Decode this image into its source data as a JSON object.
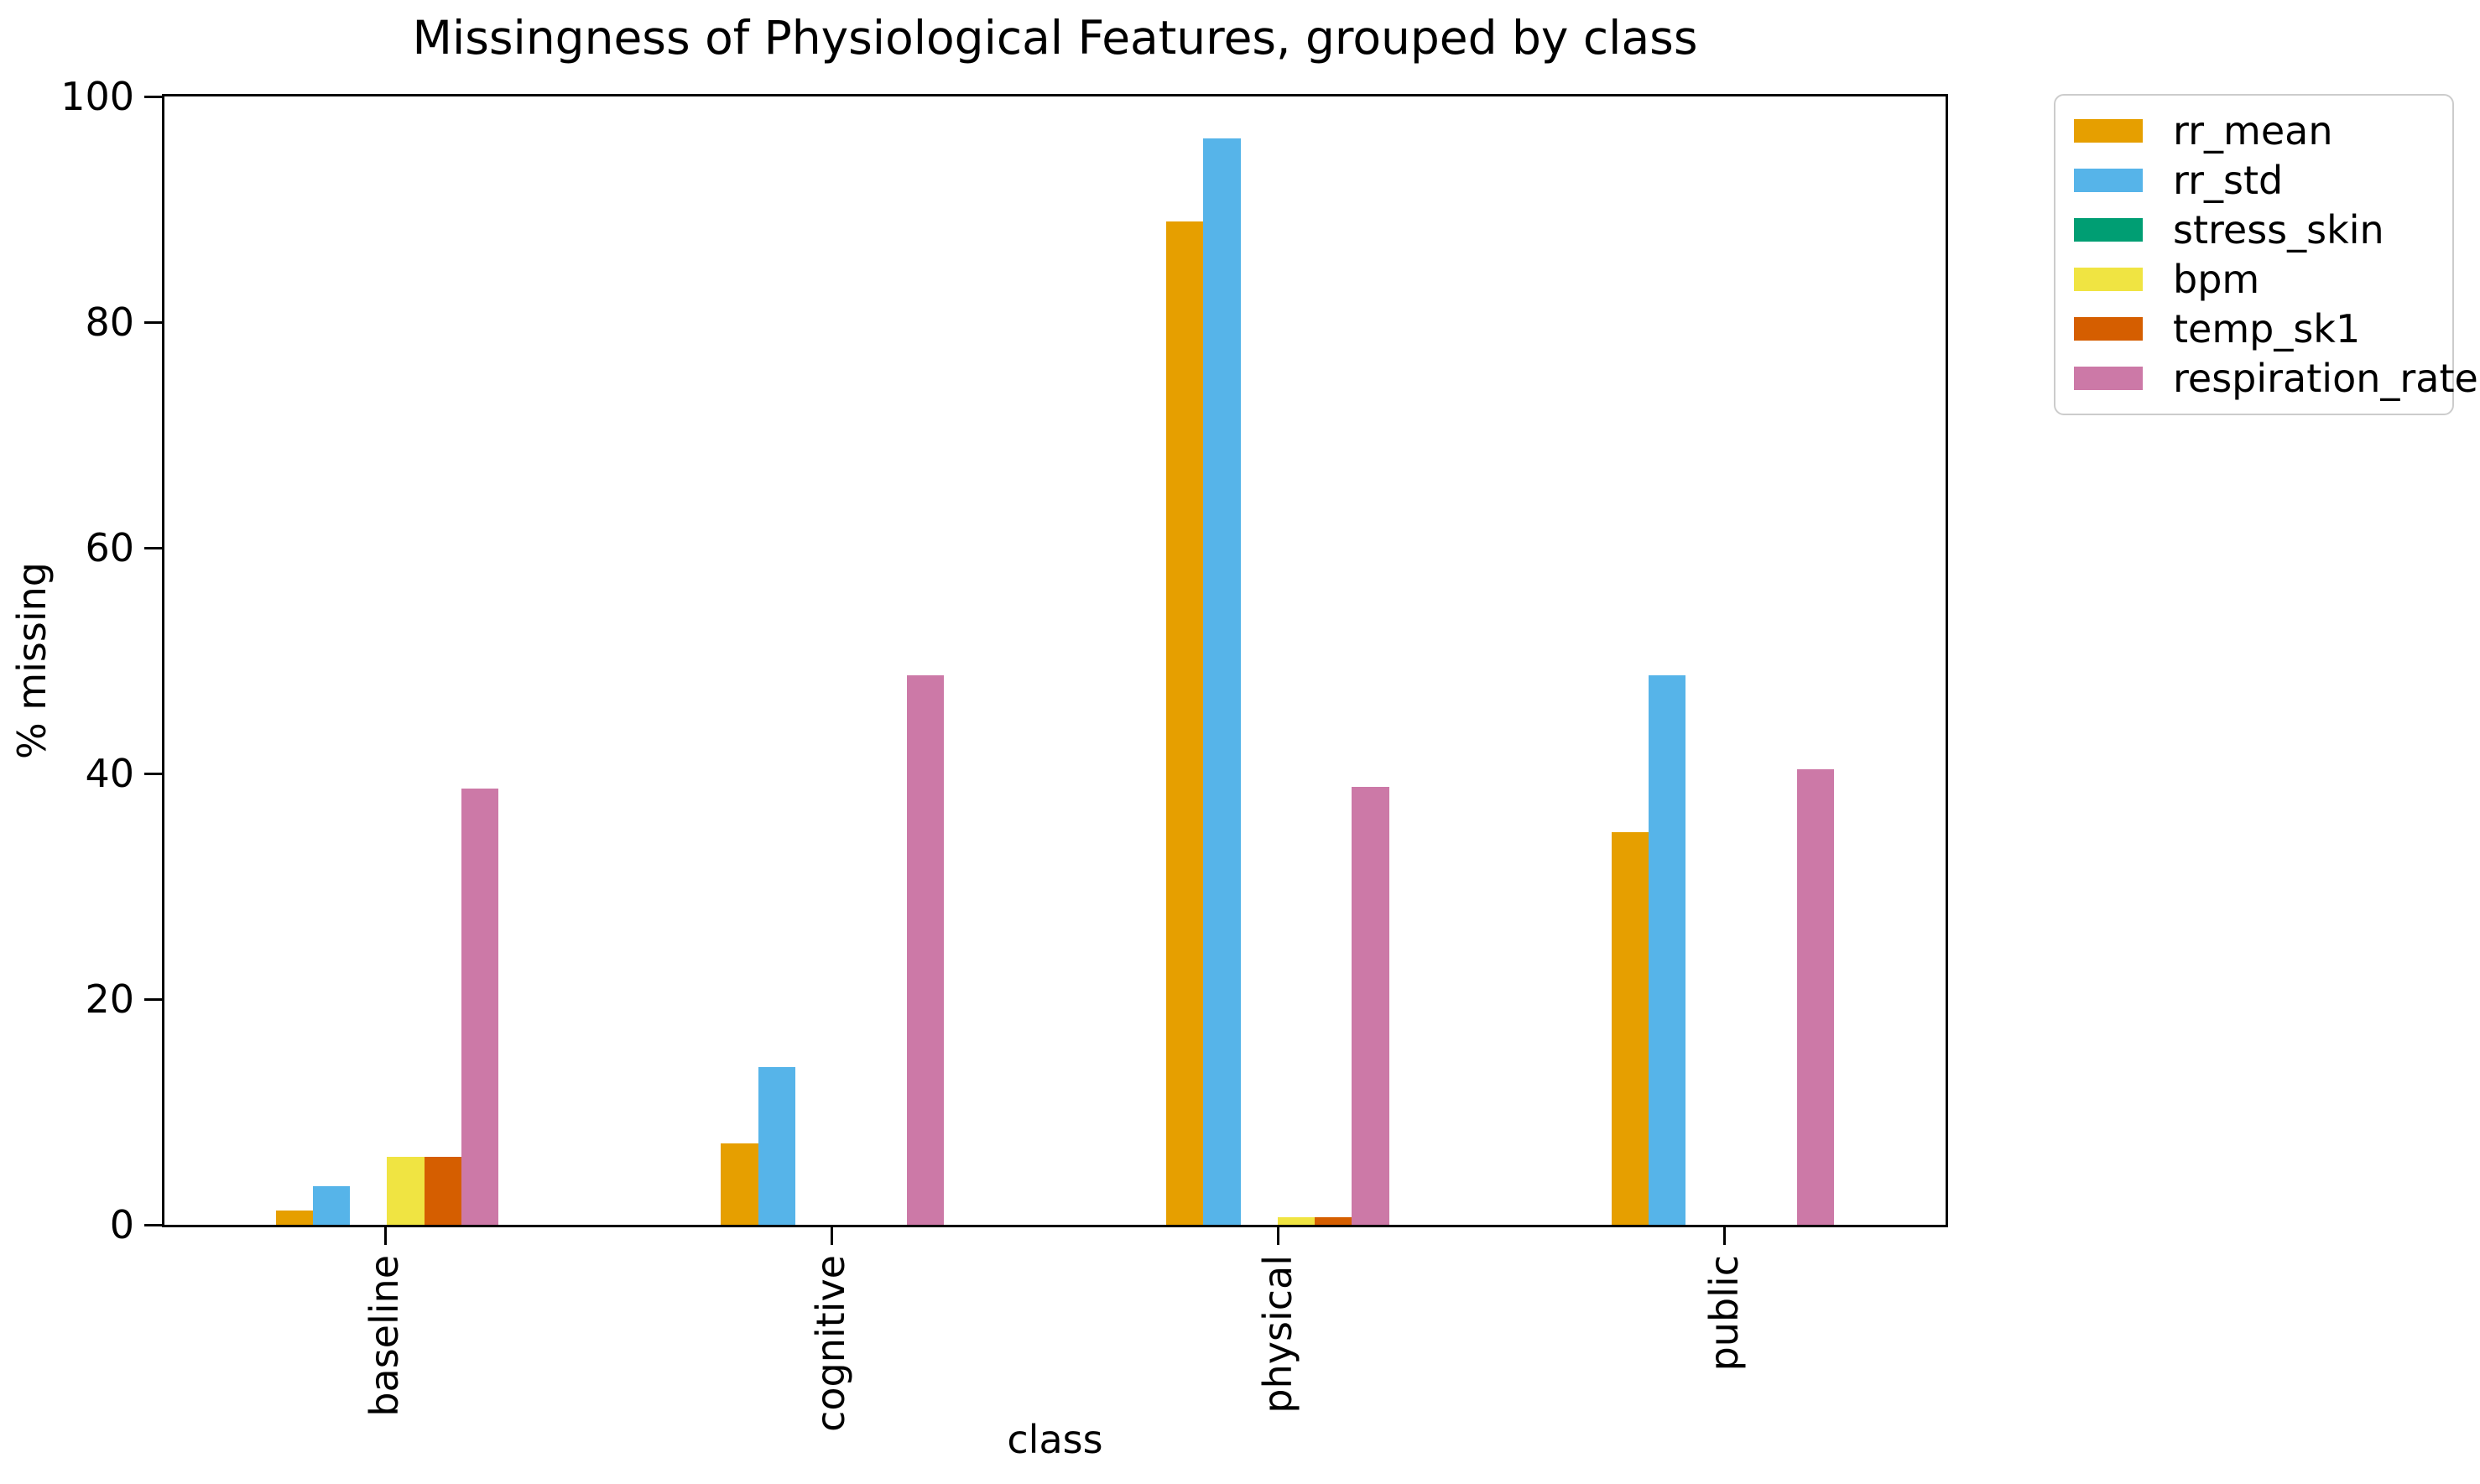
{
  "chart_data": {
    "type": "bar",
    "title": "Missingness of Physiological Features, grouped by class",
    "xlabel": "class",
    "ylabel": "% missing",
    "categories": [
      "baseline",
      "cognitive",
      "physical",
      "public"
    ],
    "ylim": [
      0,
      100
    ],
    "yticks": [
      0,
      20,
      40,
      60,
      80,
      100
    ],
    "grid": false,
    "legend_position": "outside-top-right",
    "bar_group_width_fraction": 0.5,
    "series": [
      {
        "name": "rr_mean",
        "color": "#E69F00",
        "values": [
          1.3,
          7.2,
          88.9,
          34.8
        ]
      },
      {
        "name": "rr_std",
        "color": "#56B4E9",
        "values": [
          3.4,
          14.0,
          96.3,
          48.7
        ]
      },
      {
        "name": "stress_skin",
        "color": "#009E73",
        "values": [
          0,
          0,
          0,
          0
        ]
      },
      {
        "name": "bpm",
        "color": "#F0E442",
        "values": [
          6.0,
          0,
          0.7,
          0
        ]
      },
      {
        "name": "temp_sk1",
        "color": "#D55E00",
        "values": [
          6.0,
          0,
          0.7,
          0
        ]
      },
      {
        "name": "respiration_rate",
        "color": "#CC79A7",
        "values": [
          38.7,
          48.7,
          38.8,
          40.4
        ]
      }
    ]
  }
}
